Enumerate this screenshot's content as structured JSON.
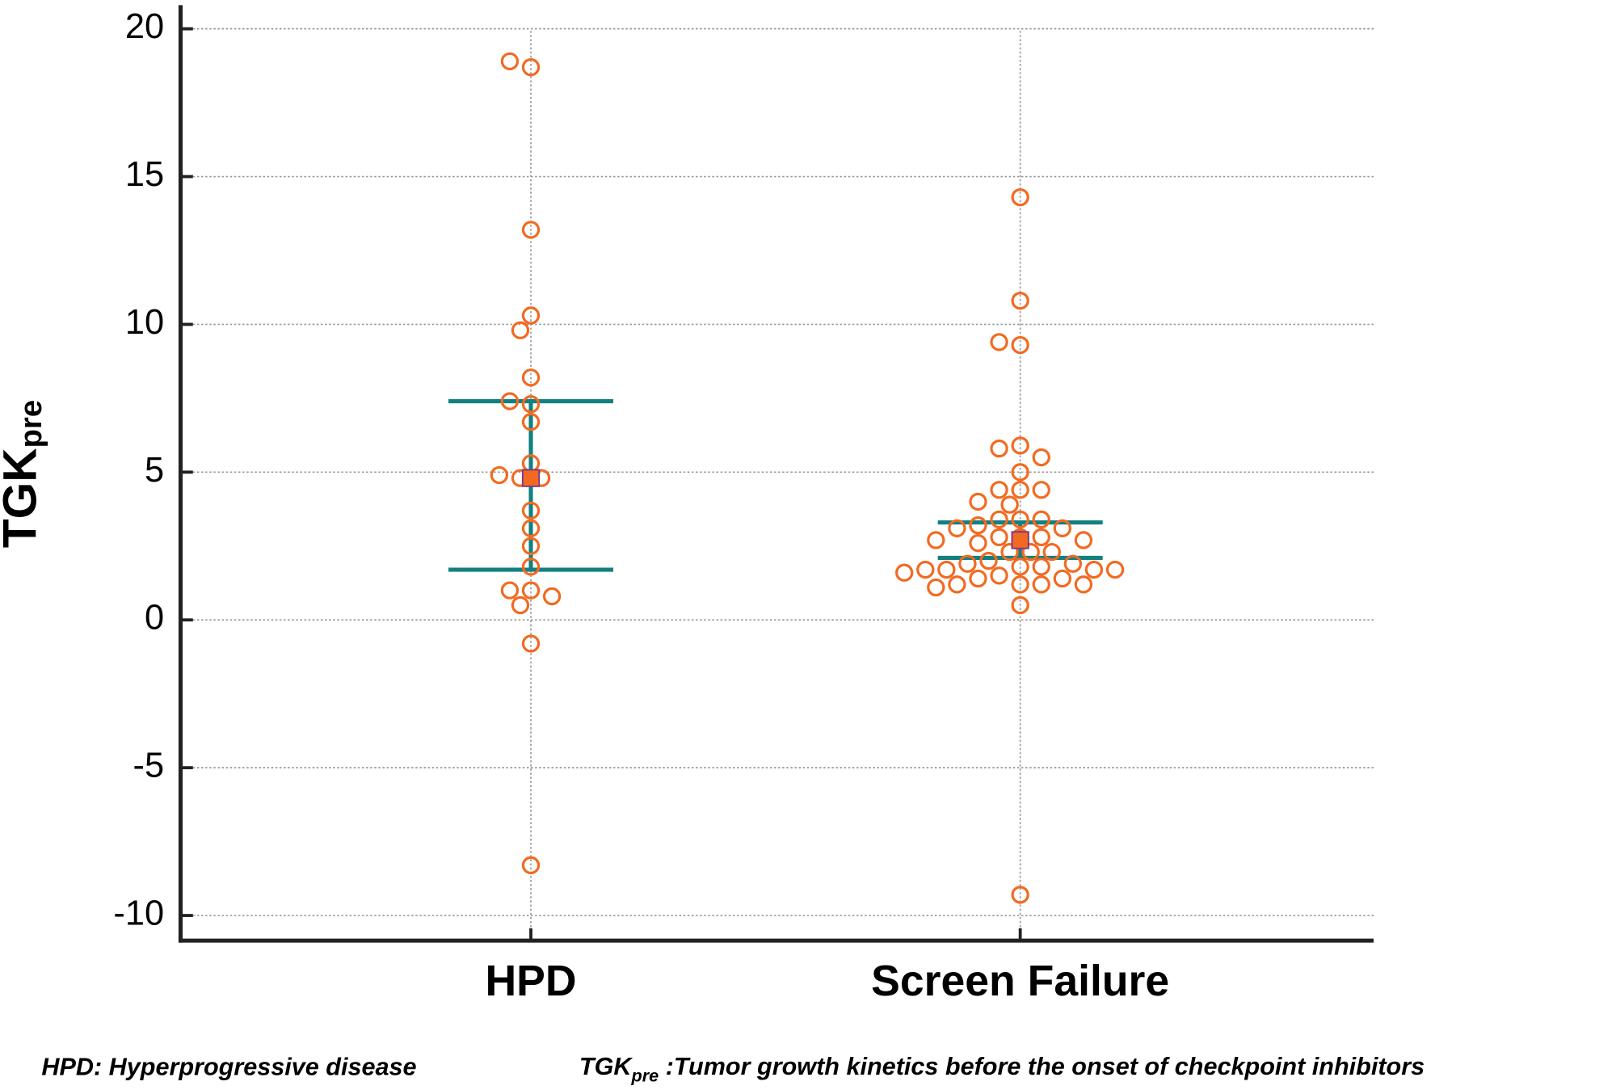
{
  "chart_data": {
    "type": "dot",
    "y_label": {
      "main": "TGK",
      "sub": "pre"
    },
    "categories": [
      "HPD",
      "Screen Failure"
    ],
    "groups": [
      {
        "values": [
          18.7,
          18.9,
          13.2,
          10.3,
          9.8,
          8.2,
          7.3,
          7.4,
          6.7,
          5.3,
          4.8,
          4.8,
          4.9,
          3.7,
          3.1,
          2.5,
          1.8,
          1.0,
          1.0,
          0.5,
          0.8,
          -0.8,
          -8.3
        ],
        "mean": 4.8,
        "upper": 7.4,
        "lower": 1.7
      },
      {
        "values": [
          14.3,
          10.8,
          9.3,
          9.4,
          5.9,
          5.8,
          5.5,
          5.0,
          4.4,
          4.4,
          4.4,
          4.0,
          3.9,
          3.4,
          3.4,
          3.4,
          3.2,
          3.1,
          3.1,
          2.8,
          2.8,
          2.8,
          2.7,
          2.6,
          2.7,
          2.3,
          2.3,
          2.3,
          2.0,
          1.9,
          1.9,
          1.8,
          1.8,
          1.7,
          1.7,
          1.7,
          1.7,
          1.6,
          1.5,
          1.4,
          1.4,
          1.2,
          1.2,
          1.2,
          1.2,
          1.1,
          0.5,
          -9.3
        ],
        "mean": 2.7,
        "upper": 3.3,
        "lower": 2.1
      }
    ],
    "point_color": "#f26a21",
    "bar_color": "#138080",
    "mean_color": "#f26a21",
    "ylim": [
      -10.85,
      20.8
    ],
    "yticks": [
      -10,
      -5,
      0,
      5,
      10,
      15,
      20
    ],
    "grid": true,
    "footnotes": [
      {
        "main": "HPD: Hyperprogressive disease"
      },
      {
        "main": "TGK",
        "sub": "pre",
        "rest": " :Tumor growth kinetics before the onset of checkpoint inhibitors"
      }
    ]
  }
}
